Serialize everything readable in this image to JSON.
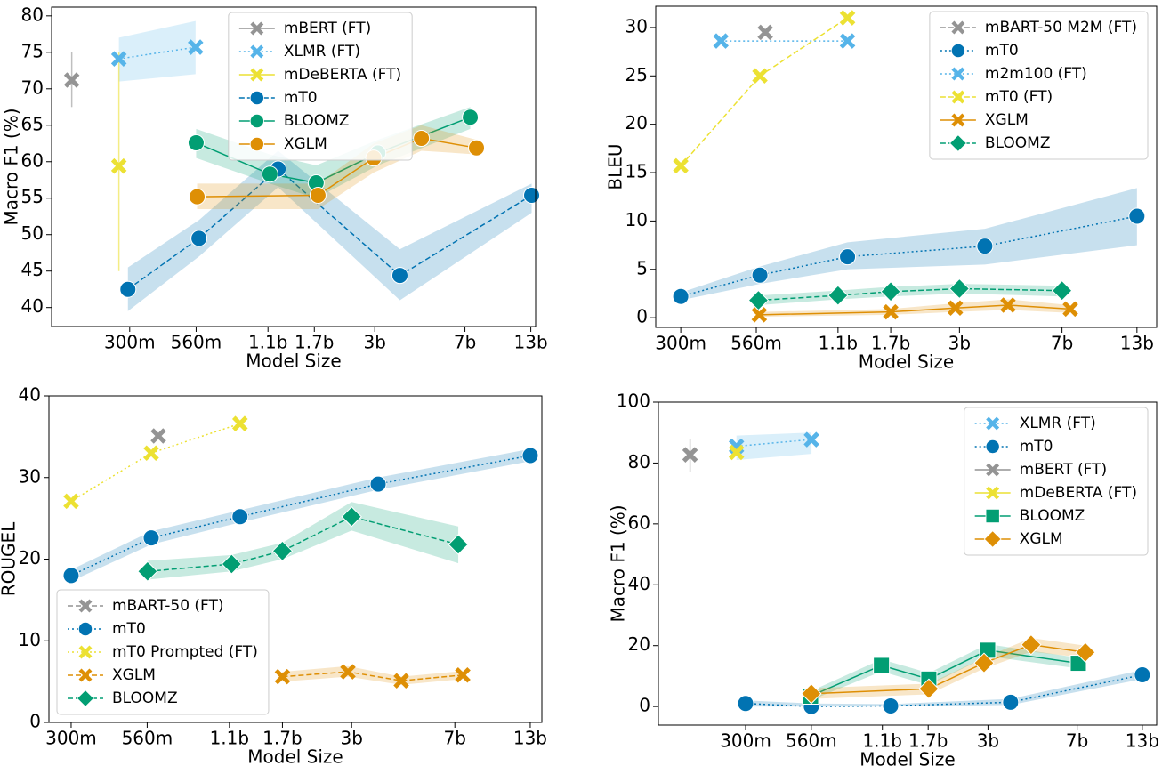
{
  "chart_data": [
    {
      "type": "line",
      "xlabel": "Model Size",
      "ylabel": "Macro F1 (%)",
      "xscale": "log",
      "legend": "upper center",
      "xlim": [
        0.144,
        13.6
      ],
      "ylim": [
        37.4,
        81.2
      ],
      "xticks": [
        {
          "value": 0.3,
          "label": "300m"
        },
        {
          "value": 0.56,
          "label": "560m"
        },
        {
          "value": 1.1,
          "label": "1.1b"
        },
        {
          "value": 1.7,
          "label": "1.7b"
        },
        {
          "value": 3,
          "label": "3b"
        },
        {
          "value": 7,
          "label": "7b"
        },
        {
          "value": 13,
          "label": "13b"
        }
      ],
      "yticks": [
        40,
        45,
        50,
        55,
        60,
        65,
        70,
        75,
        80
      ],
      "series": [
        {
          "name": "mBERT (FT)",
          "color": "#949494",
          "marker": "x",
          "linestyle": "solid",
          "x": [
            0.174
          ],
          "values": [
            71.2
          ],
          "lower": [
            67.5
          ],
          "upper": [
            75
          ]
        },
        {
          "name": "XLMR (FT)",
          "color": "#56b4e9",
          "marker": "x",
          "linestyle": "dotted",
          "x": [
            0.271,
            0.557
          ],
          "values": [
            74.1,
            75.7
          ],
          "lower": [
            71,
            72
          ],
          "upper": [
            77,
            79.3
          ]
        },
        {
          "name": "mDeBERTA (FT)",
          "color": "#ece133",
          "marker": "x",
          "linestyle": "solid",
          "x": [
            0.271
          ],
          "values": [
            59.4
          ],
          "lower": [
            45
          ],
          "upper": [
            75
          ]
        },
        {
          "name": "mT0",
          "color": "#0173b2",
          "marker": "circle",
          "linestyle": "dashed",
          "x": [
            0.295,
            0.575,
            1.21,
            3.8,
            13.1
          ],
          "values": [
            42.5,
            49.5,
            59,
            44.4,
            55.4
          ],
          "lower": [
            39.5,
            47,
            56.5,
            41,
            53
          ],
          "upper": [
            45.5,
            52,
            61.5,
            48,
            57
          ]
        },
        {
          "name": "BLOOMZ",
          "color": "#029e73",
          "marker": "circle",
          "linestyle": "solid",
          "x": [
            0.56,
            1.12,
            1.73,
            3.09,
            7.36
          ],
          "values": [
            62.6,
            58.3,
            57.1,
            61.2,
            66.1
          ],
          "lower": [
            60.5,
            57,
            55,
            59.5,
            64.5
          ],
          "upper": [
            64.5,
            61,
            59.5,
            63,
            67.5
          ]
        },
        {
          "name": "XGLM",
          "color": "#de8f05",
          "marker": "circle",
          "linestyle": "solid",
          "x": [
            0.565,
            1.76,
            2.97,
            4.65,
            7.8
          ],
          "values": [
            55.2,
            55.4,
            60.5,
            63.2,
            61.9
          ],
          "lower": [
            53.5,
            53.5,
            58.5,
            61.5,
            61
          ],
          "upper": [
            57,
            57,
            62.5,
            65,
            63
          ]
        }
      ]
    },
    {
      "type": "line",
      "xlabel": "Model Size",
      "ylabel": "BLEU",
      "xscale": "log",
      "legend": "upper right",
      "xlim": [
        0.244,
        15.3
      ],
      "ylim": [
        -1,
        32.2
      ],
      "xticks": [
        {
          "value": 0.3,
          "label": "300m"
        },
        {
          "value": 0.56,
          "label": "560m"
        },
        {
          "value": 1.1,
          "label": "1.1b"
        },
        {
          "value": 1.7,
          "label": "1.7b"
        },
        {
          "value": 3,
          "label": "3b"
        },
        {
          "value": 7,
          "label": "7b"
        },
        {
          "value": 13,
          "label": "13b"
        }
      ],
      "yticks": [
        0,
        5,
        10,
        15,
        20,
        25,
        30
      ],
      "series": [
        {
          "name": "mBART-50 M2M (FT)",
          "color": "#949494",
          "marker": "x",
          "linestyle": "dashed",
          "x": [
            0.603
          ],
          "values": [
            29.5
          ]
        },
        {
          "name": "mT0",
          "color": "#0173b2",
          "marker": "circle",
          "linestyle": "dotted",
          "x": [
            0.3,
            0.577,
            1.19,
            3.7,
            13
          ],
          "values": [
            2.2,
            4.4,
            6.3,
            7.4,
            10.5
          ],
          "lower": [
            1.8,
            3.5,
            5,
            5.5,
            7.5
          ],
          "upper": [
            2.6,
            5.3,
            7.8,
            9.2,
            13.4
          ]
        },
        {
          "name": "m2m100 (FT)",
          "color": "#56b4e9",
          "marker": "x",
          "linestyle": "dotted",
          "x": [
            0.418,
            1.19
          ],
          "values": [
            28.6,
            28.6
          ]
        },
        {
          "name": "mT0 (FT)",
          "color": "#ece133",
          "marker": "x",
          "linestyle": "dashed",
          "x": [
            0.3,
            0.577,
            1.19
          ],
          "values": [
            15.7,
            25,
            31
          ]
        },
        {
          "name": "XGLM",
          "color": "#de8f05",
          "marker": "x",
          "linestyle": "solid",
          "x": [
            0.574,
            1.7,
            2.9,
            4.48,
            7.5
          ],
          "values": [
            0.3,
            0.6,
            1.0,
            1.3,
            0.9
          ],
          "lower": [
            0.1,
            0.3,
            0.6,
            0.8,
            0.5
          ],
          "upper": [
            0.6,
            0.9,
            1.5,
            1.9,
            1.3
          ]
        },
        {
          "name": "BLOOMZ",
          "color": "#029e73",
          "marker": "diamond",
          "linestyle": "dashed",
          "x": [
            0.57,
            1.1,
            1.7,
            3,
            7
          ],
          "values": [
            1.8,
            2.3,
            2.7,
            3.0,
            2.8
          ],
          "lower": [
            1.3,
            1.9,
            2.2,
            2.5,
            2.2
          ],
          "upper": [
            2.3,
            2.8,
            3.2,
            3.5,
            3.3
          ]
        }
      ]
    },
    {
      "type": "line",
      "xlabel": "Model Size",
      "ylabel": "ROUGEL",
      "xscale": "log",
      "legend": "lower left",
      "xlim": [
        0.25,
        14.3
      ],
      "ylim": [
        0,
        40
      ],
      "xticks": [
        {
          "value": 0.3,
          "label": "300m"
        },
        {
          "value": 0.56,
          "label": "560m"
        },
        {
          "value": 1.1,
          "label": "1.1b"
        },
        {
          "value": 1.7,
          "label": "1.7b"
        },
        {
          "value": 3,
          "label": "3b"
        },
        {
          "value": 7,
          "label": "7b"
        },
        {
          "value": 13,
          "label": "13b"
        }
      ],
      "yticks": [
        0,
        10,
        20,
        30,
        40
      ],
      "series": [
        {
          "name": "mBART-50 (FT)",
          "color": "#949494",
          "marker": "x",
          "linestyle": "dashed",
          "x": [
            0.614
          ],
          "values": [
            35.1
          ]
        },
        {
          "name": "mT0",
          "color": "#0173b2",
          "marker": "circle",
          "linestyle": "dotted",
          "x": [
            0.3,
            0.579,
            1.2,
            3.73,
            13
          ],
          "values": [
            18,
            22.6,
            25.2,
            29.2,
            32.7
          ],
          "lower": [
            17.3,
            21.8,
            24.5,
            28.5,
            32
          ],
          "upper": [
            18.7,
            23.4,
            26,
            30,
            33.5
          ]
        },
        {
          "name": "mT0 Prompted (FT)",
          "color": "#ece133",
          "marker": "x",
          "linestyle": "dotted",
          "x": [
            0.3,
            0.579,
            1.2
          ],
          "values": [
            27.1,
            33,
            36.6
          ]
        },
        {
          "name": "XGLM",
          "color": "#de8f05",
          "marker": "x",
          "linestyle": "dashed",
          "x": [
            1.7,
            2.91,
            4.51,
            7.47
          ],
          "values": [
            5.6,
            6.2,
            5.1,
            5.8
          ],
          "lower": [
            5,
            5.6,
            4.6,
            5.3
          ],
          "upper": [
            6.2,
            6.9,
            5.6,
            6.3
          ]
        },
        {
          "name": "BLOOMZ",
          "color": "#029e73",
          "marker": "diamond",
          "linestyle": "dashed",
          "x": [
            0.562,
            1.12,
            1.7,
            3.0,
            7.2
          ],
          "values": [
            18.5,
            19.4,
            21,
            25.2,
            21.8
          ],
          "lower": [
            17.5,
            18.5,
            20,
            23.5,
            19.5
          ],
          "upper": [
            19.8,
            20.5,
            22,
            27,
            24
          ]
        }
      ]
    },
    {
      "type": "line",
      "xlabel": "Model Size",
      "ylabel": "Macro F1 (%)",
      "xscale": "log",
      "legend": "upper right",
      "xlim": [
        0.131,
        14.9
      ],
      "ylim": [
        -6.1,
        100
      ],
      "xticks": [
        {
          "value": 0.3,
          "label": "300m"
        },
        {
          "value": 0.56,
          "label": "560m"
        },
        {
          "value": 1.1,
          "label": "1.1b"
        },
        {
          "value": 1.7,
          "label": "1.7b"
        },
        {
          "value": 3,
          "label": "3b"
        },
        {
          "value": 7,
          "label": "7b"
        },
        {
          "value": 13,
          "label": "13b"
        }
      ],
      "yticks": [
        0,
        20,
        40,
        60,
        80,
        100
      ],
      "series": [
        {
          "name": "XLMR (FT)",
          "color": "#56b4e9",
          "marker": "x",
          "linestyle": "dotted",
          "x": [
            0.275,
            0.561
          ],
          "values": [
            85.5,
            87.7
          ],
          "lower": [
            81,
            83
          ],
          "upper": [
            89,
            90
          ]
        },
        {
          "name": "mT0",
          "color": "#0173b2",
          "marker": "circle",
          "linestyle": "dotted",
          "x": [
            0.3,
            0.56,
            1.19,
            3.72,
            13
          ],
          "values": [
            1,
            0,
            0.2,
            1.4,
            10.4
          ],
          "lower": [
            0,
            0,
            0,
            0.5,
            9
          ],
          "upper": [
            2,
            1,
            0.8,
            2.5,
            12
          ]
        },
        {
          "name": "mBERT (FT)",
          "color": "#949494",
          "marker": "x",
          "linestyle": "solid",
          "x": [
            0.177
          ],
          "values": [
            82.7
          ],
          "lower": [
            77
          ],
          "upper": [
            88
          ]
        },
        {
          "name": "mDeBERTA (FT)",
          "color": "#ece133",
          "marker": "x",
          "linestyle": "solid",
          "x": [
            0.275
          ],
          "values": [
            83.5
          ]
        },
        {
          "name": "BLOOMZ",
          "color": "#029e73",
          "marker": "square",
          "linestyle": "solid",
          "x": [
            0.556,
            1.09,
            1.71,
            2.99,
            7.08
          ],
          "values": [
            3.4,
            13.5,
            9,
            18.5,
            14.2
          ],
          "lower": [
            2,
            11.5,
            7,
            16.5,
            12.5
          ],
          "upper": [
            5,
            15.5,
            11,
            20.5,
            16
          ]
        },
        {
          "name": "XGLM",
          "color": "#de8f05",
          "marker": "diamond",
          "linestyle": "solid",
          "x": [
            0.56,
            1.71,
            2.89,
            4.52,
            7.57
          ],
          "values": [
            4.2,
            5.8,
            14.3,
            20.3,
            17.8
          ],
          "lower": [
            2.5,
            4,
            12.5,
            18,
            16
          ],
          "upper": [
            6,
            7.5,
            16,
            22.5,
            20
          ]
        }
      ]
    }
  ]
}
